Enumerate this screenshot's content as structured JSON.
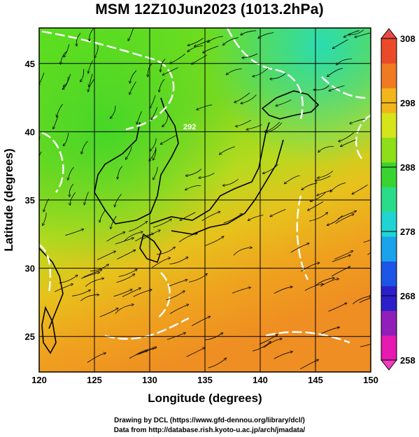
{
  "title": "MSM 12Z10Jun2023 (1013.2hPa)",
  "map": {
    "lon_range": [
      120,
      150
    ],
    "lat_range": [
      22.4,
      47.6
    ],
    "x_label": "Longitude (degrees)",
    "y_label": "Latitude  (degrees)",
    "x_ticks": [
      {
        "value": 120,
        "label": "120"
      },
      {
        "value": 125,
        "label": "125"
      },
      {
        "value": 130,
        "label": "130"
      },
      {
        "value": 135,
        "label": "135"
      },
      {
        "value": 140,
        "label": "140"
      },
      {
        "value": 145,
        "label": "145"
      },
      {
        "value": 150,
        "label": "150"
      }
    ],
    "y_ticks": [
      {
        "value": 25,
        "label": "25"
      },
      {
        "value": 30,
        "label": "30"
      },
      {
        "value": 35,
        "label": "35"
      },
      {
        "value": 40,
        "label": "40"
      },
      {
        "value": 45,
        "label": "45"
      }
    ],
    "field": "temperature shading with streamlines and white contours",
    "contour_label": "292"
  },
  "colorbar": {
    "min": 258,
    "max": 308,
    "labels": [
      {
        "value": 308,
        "label": "308"
      },
      {
        "value": 298,
        "label": "298"
      },
      {
        "value": 288,
        "label": "288"
      },
      {
        "value": 278,
        "label": "278"
      },
      {
        "value": 268,
        "label": "268"
      },
      {
        "value": 258,
        "label": "258"
      }
    ],
    "colors": [
      "#e619b0",
      "#8f1fb8",
      "#2c1fc9",
      "#1c56e6",
      "#1aa2ea",
      "#1fd4d2",
      "#2adc8a",
      "#39d430",
      "#8ede1a",
      "#d6e41a",
      "#f2b51a",
      "#f07a22",
      "#ea4a2a"
    ]
  },
  "credits": {
    "line1": "Drawing by DCL (https://www.gfd-dennou.org/library/dcl/)",
    "line2": "Data from http://database.rish.kyoto-u.ac.jp/arch/jmadata/"
  }
}
